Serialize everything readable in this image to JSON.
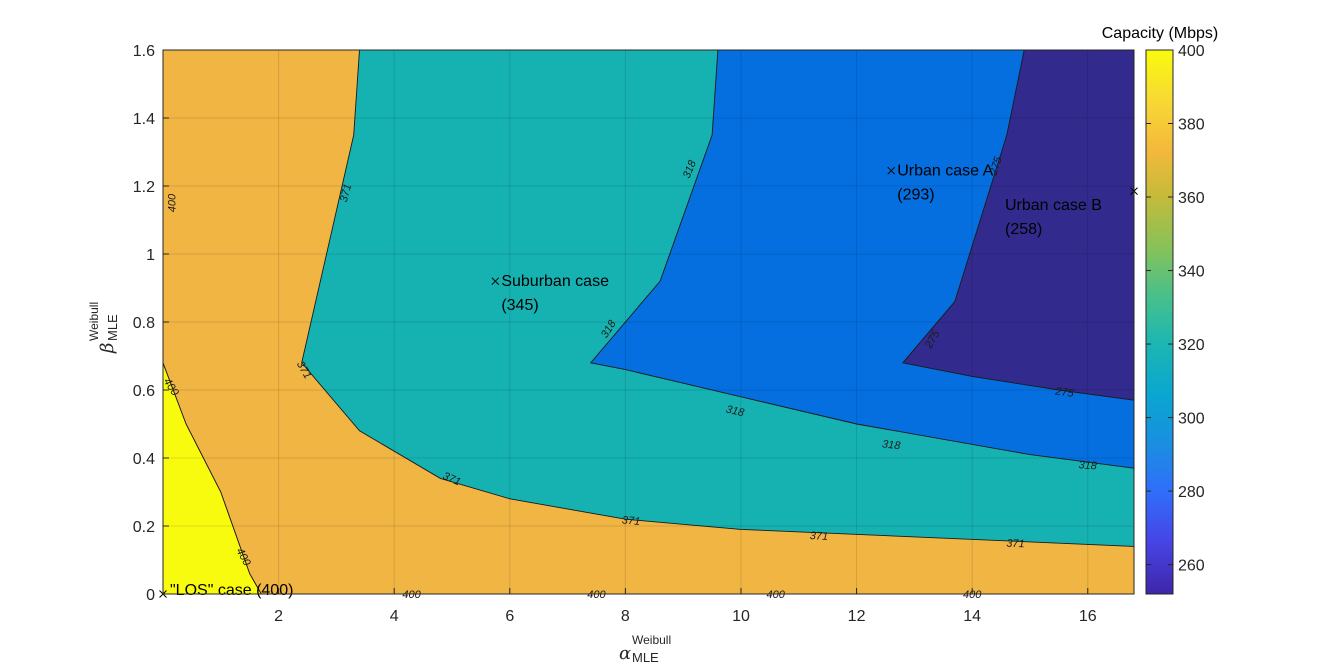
{
  "chart_data": {
    "type": "contourf",
    "xlabel": {
      "symbol": "α",
      "subscript": "MLE",
      "superscript": "Weibull"
    },
    "ylabel": {
      "symbol": "β",
      "subscript": "MLE",
      "superscript": "Weibull"
    },
    "xlim": [
      0,
      16.8
    ],
    "ylim": [
      0,
      1.6
    ],
    "xticks": [
      "2",
      "4",
      "6",
      "8",
      "10",
      "12",
      "14",
      "16"
    ],
    "yticks": [
      "0",
      "0.2",
      "0.4",
      "0.6",
      "0.8",
      "1",
      "1.2",
      "1.4",
      "1.6"
    ],
    "grid": true,
    "colorbar": {
      "title": "Capacity (Mbps)",
      "range": [
        252,
        400
      ],
      "ticks": [
        "260",
        "280",
        "300",
        "320",
        "340",
        "360",
        "380",
        "400"
      ],
      "stops": [
        {
          "v": 252,
          "color": "#3e26a8"
        },
        {
          "v": 266,
          "color": "#4744e5"
        },
        {
          "v": 280,
          "color": "#2f6ffa"
        },
        {
          "v": 293,
          "color": "#1a8fe0"
        },
        {
          "v": 306,
          "color": "#0aa6d0"
        },
        {
          "v": 320,
          "color": "#1cb6b2"
        },
        {
          "v": 333,
          "color": "#48c08b"
        },
        {
          "v": 346,
          "color": "#86c25a"
        },
        {
          "v": 360,
          "color": "#c4bb3a"
        },
        {
          "v": 373,
          "color": "#f4b93c"
        },
        {
          "v": 386,
          "color": "#f8d834"
        },
        {
          "v": 400,
          "color": "#f9fb0e"
        }
      ]
    },
    "bands": [
      {
        "level": "400",
        "color": "#f9fb0e",
        "boundary": [
          [
            0,
            0
          ],
          [
            0,
            0.68
          ],
          [
            0.4,
            0.5
          ],
          [
            1.0,
            0.3
          ],
          [
            1.5,
            0.06
          ],
          [
            1.7,
            0
          ],
          [
            0,
            0
          ]
        ]
      },
      {
        "level": "371",
        "color": "#f1b544",
        "boundary": [
          [
            0,
            1.6
          ],
          [
            16.8,
            1.6
          ],
          [
            16.8,
            0
          ],
          [
            1.7,
            0
          ],
          [
            1.5,
            0.06
          ],
          [
            1.0,
            0.3
          ],
          [
            0.4,
            0.5
          ],
          [
            0,
            0.68
          ]
        ]
      },
      {
        "level": "318",
        "color": "#16b2b2",
        "boundary": [
          [
            3.4,
            1.6
          ],
          [
            9.6,
            1.6
          ],
          [
            16.8,
            1.6
          ],
          [
            16.8,
            0.14
          ],
          [
            10,
            0.19
          ],
          [
            8,
            0.22
          ],
          [
            6,
            0.28
          ],
          [
            4.8,
            0.34
          ],
          [
            3.4,
            0.48
          ],
          [
            2.4,
            0.68
          ],
          [
            3.3,
            1.35
          ]
        ]
      },
      {
        "level": "275",
        "color": "#056fe0",
        "boundary": [
          [
            9.6,
            1.6
          ],
          [
            16.8,
            1.6
          ],
          [
            16.8,
            0.37
          ],
          [
            15,
            0.41
          ],
          [
            12,
            0.5
          ],
          [
            10,
            0.58
          ],
          [
            8,
            0.66
          ],
          [
            7.4,
            0.68
          ],
          [
            8.6,
            0.92
          ],
          [
            9.5,
            1.35
          ]
        ]
      },
      {
        "level": "252",
        "color": "#322b8d",
        "boundary": [
          [
            14.9,
            1.6
          ],
          [
            16.8,
            1.6
          ],
          [
            16.8,
            0.57
          ],
          [
            15.5,
            0.6
          ],
          [
            14,
            0.64
          ],
          [
            12.8,
            0.68
          ],
          [
            13.7,
            0.86
          ],
          [
            14.6,
            1.35
          ]
        ]
      }
    ],
    "contour_labels": [
      {
        "text": "400",
        "x": 0.15,
        "y": 1.15,
        "rot": -90
      },
      {
        "text": "400",
        "x": 0.15,
        "y": 0.61,
        "rot": 58
      },
      {
        "text": "400",
        "x": 1.4,
        "y": 0.11,
        "rot": 62
      },
      {
        "text": "400",
        "x": 4.3,
        "y": 0.0,
        "rot": 0
      },
      {
        "text": "400",
        "x": 7.5,
        "y": 0.0,
        "rot": 0
      },
      {
        "text": "400",
        "x": 10.6,
        "y": 0.0,
        "rot": 0
      },
      {
        "text": "400",
        "x": 14.0,
        "y": 0.0,
        "rot": 0
      },
      {
        "text": "371",
        "x": 3.15,
        "y": 1.18,
        "rot": -75
      },
      {
        "text": "371",
        "x": 2.45,
        "y": 0.66,
        "rot": 60
      },
      {
        "text": "371",
        "x": 5.0,
        "y": 0.34,
        "rot": 24
      },
      {
        "text": "371",
        "x": 8.1,
        "y": 0.217,
        "rot": 5
      },
      {
        "text": "371",
        "x": 11.35,
        "y": 0.172,
        "rot": 3
      },
      {
        "text": "371",
        "x": 14.75,
        "y": 0.15,
        "rot": 2
      },
      {
        "text": "318",
        "x": 9.1,
        "y": 1.25,
        "rot": -68
      },
      {
        "text": "318",
        "x": 7.7,
        "y": 0.78,
        "rot": -58
      },
      {
        "text": "318",
        "x": 9.9,
        "y": 0.54,
        "rot": 13
      },
      {
        "text": "318",
        "x": 12.6,
        "y": 0.44,
        "rot": 6
      },
      {
        "text": "318",
        "x": 16.0,
        "y": 0.38,
        "rot": 4
      },
      {
        "text": "275",
        "x": 14.4,
        "y": 1.26,
        "rot": -72
      },
      {
        "text": "275",
        "x": 13.3,
        "y": 0.75,
        "rot": -60
      },
      {
        "text": "275",
        "x": 15.6,
        "y": 0.595,
        "rot": 8
      }
    ],
    "annotations": [
      {
        "name": "los",
        "marker": [
          0,
          0
        ],
        "line1": "\"LOS\" case (400)",
        "line2": ""
      },
      {
        "name": "suburban",
        "marker": [
          5.75,
          0.92
        ],
        "line1": "Suburban case",
        "line2": "(345)"
      },
      {
        "name": "urban-a",
        "marker": [
          12.6,
          1.245
        ],
        "line1": "Urban case A",
        "line2": "(293)"
      },
      {
        "name": "urban-b",
        "marker": [
          16.8,
          1.185
        ],
        "line1": "Urban case B",
        "line2": "(258)"
      }
    ]
  }
}
